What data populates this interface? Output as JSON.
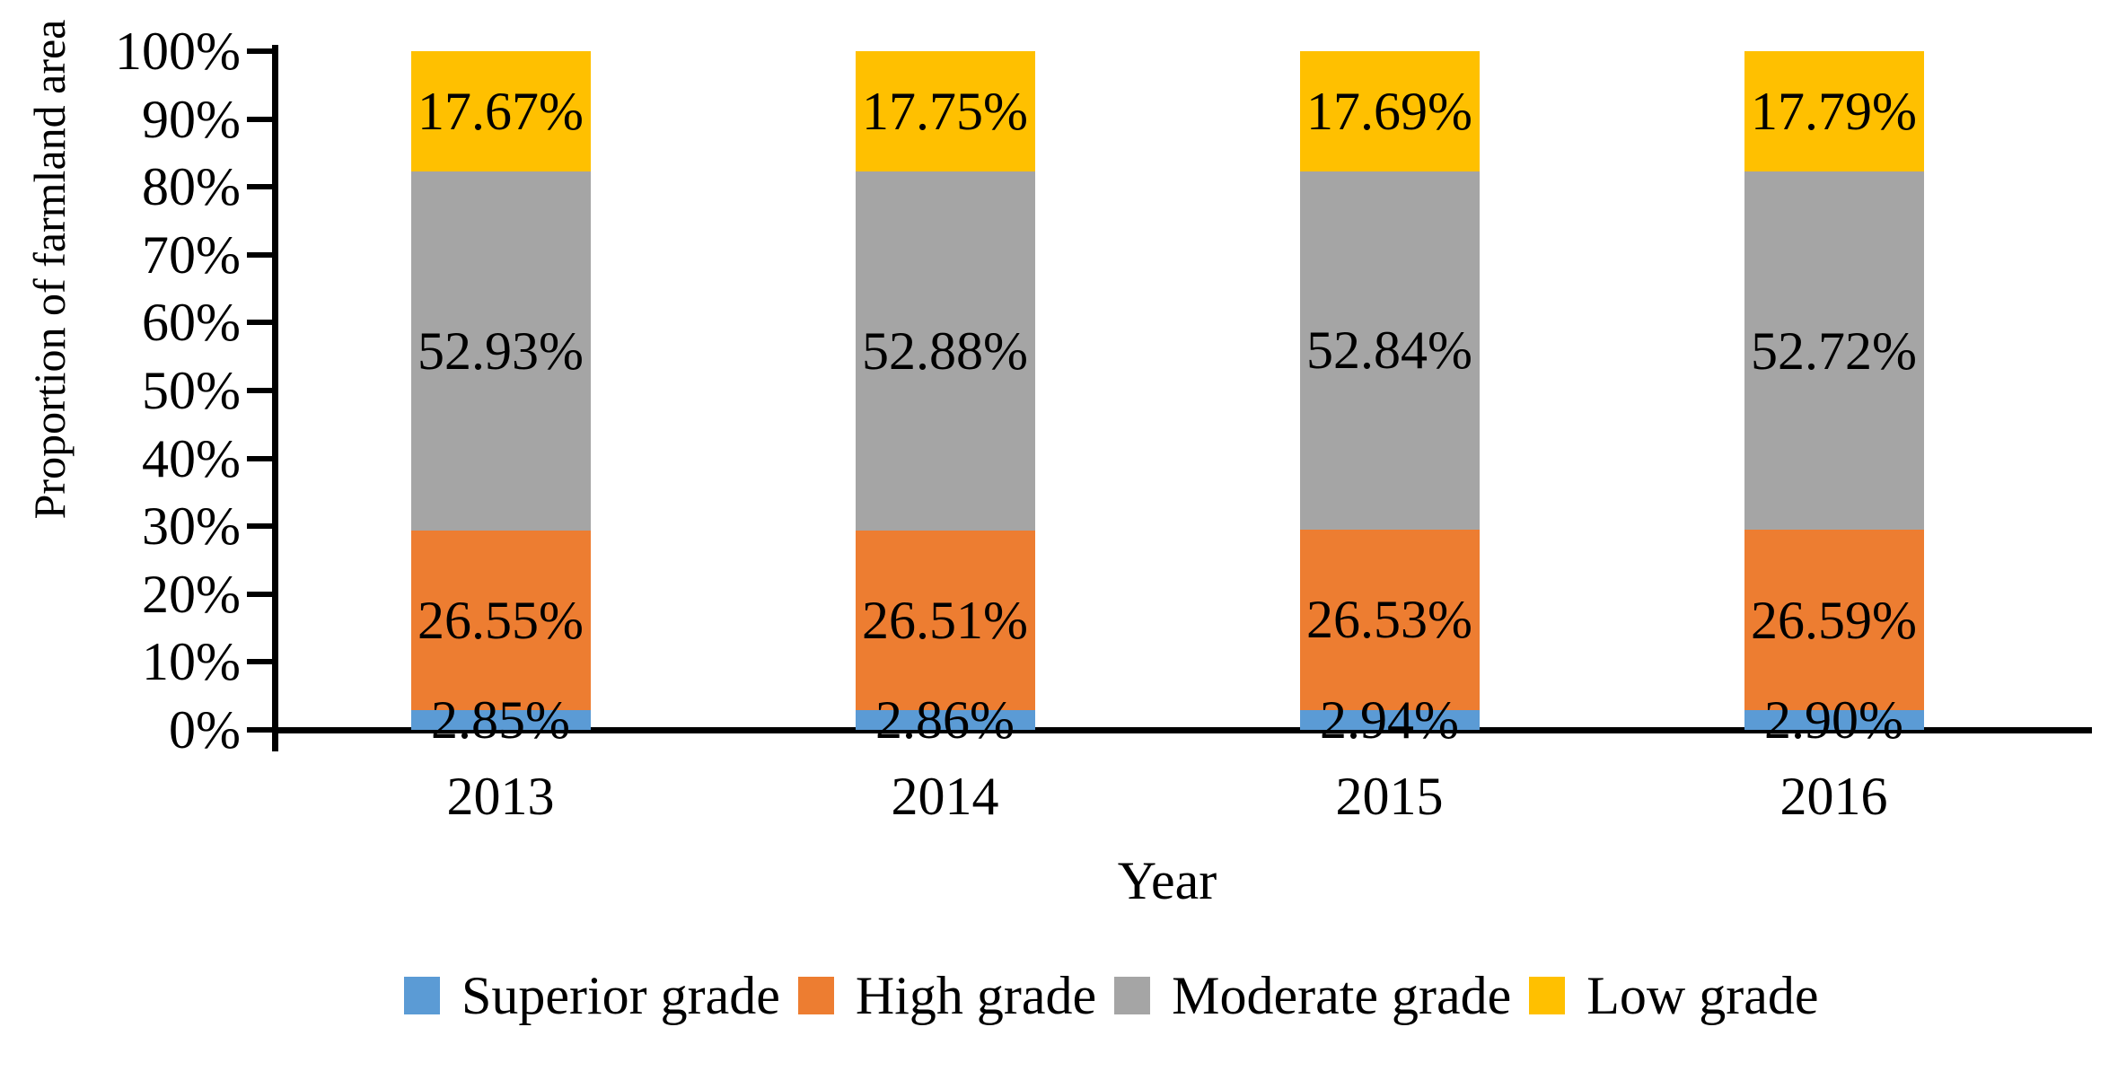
{
  "figure": {
    "background": "#ffffff",
    "text_color": "#000000",
    "axis_color": "#000000"
  },
  "chart_data": {
    "type": "bar",
    "stacked": true,
    "title": "",
    "xlabel": "Year",
    "ylabel": "Proportion of farmland area",
    "categories": [
      "2013",
      "2014",
      "2015",
      "2016"
    ],
    "series": [
      {
        "name": "Superior grade",
        "color": "#5B9BD5",
        "values": [
          2.85,
          2.86,
          2.94,
          2.9
        ]
      },
      {
        "name": "High grade",
        "color": "#ED7D31",
        "values": [
          26.55,
          26.51,
          26.53,
          26.59
        ]
      },
      {
        "name": "Moderate grade",
        "color": "#A5A5A5",
        "values": [
          52.93,
          52.88,
          52.84,
          52.72
        ]
      },
      {
        "name": "Low grade",
        "color": "#FFC000",
        "values": [
          17.67,
          17.75,
          17.69,
          17.79
        ]
      }
    ],
    "data_label_format": "0.00%",
    "y_ticks": [
      "0%",
      "10%",
      "20%",
      "30%",
      "40%",
      "50%",
      "60%",
      "70%",
      "80%",
      "90%",
      "100%"
    ],
    "ylim": [
      0,
      100
    ],
    "grid": false,
    "legend_position": "bottom"
  }
}
